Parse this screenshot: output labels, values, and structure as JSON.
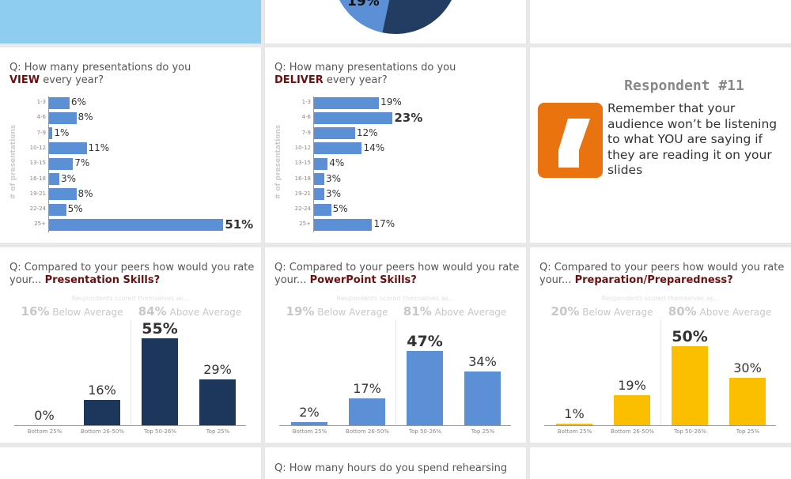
{
  "colors": {
    "top_left_block": "#8ecdf0",
    "pie_light": "#5b8fd6",
    "pie_dark": "#233d62",
    "hbar": "#5b8fd6",
    "presentation": "#1c365c",
    "powerpoint": "#5b8fd6",
    "preparation": "#fbbf00",
    "quote_icon": "#e8730f",
    "highlight": "#6b0f0f"
  },
  "pie": {
    "visible_label": "19%",
    "slices": [
      {
        "value": 19,
        "color": "#5b8fd6"
      },
      {
        "value": 81,
        "color": "#233d62"
      }
    ]
  },
  "view_chart": {
    "q_prefix": "Q: How many presentations do you",
    "q_em": "VIEW",
    "q_suffix": " every year?"
  },
  "deliver_chart": {
    "q_prefix": "Q: How many presentations do you",
    "q_em": "DELIVER",
    "q_suffix": " every year?"
  },
  "quote": {
    "title": "Respondent #11",
    "icon": "quote-mark-icon",
    "text": "Remember that your audience won’t be listening to what YOU are saying if they are reading it on your slides"
  },
  "rating_common": {
    "q_prefix": "Q: Compared to your peers how would you rate your... ",
    "subtitle": "Respondents scored themselves as...",
    "below": "Below Average",
    "above": "Above Average"
  },
  "presentation": {
    "q_em": "Presentation Skills?",
    "below_pct": "16%",
    "above_pct": "84%"
  },
  "powerpoint": {
    "q_em": "PowerPoint Skills?",
    "below_pct": "19%",
    "above_pct": "81%"
  },
  "preparation": {
    "q_em": "Preparation/Preparedness?",
    "below_pct": "20%",
    "above_pct": "80%"
  },
  "rehearse": {
    "q": "Q: How many hours do you spend rehearsing"
  },
  "chart_data": [
    {
      "type": "bar",
      "orientation": "horizontal",
      "ylabel": "# of presentations",
      "categories": [
        "1-3",
        "4-6",
        "7-9",
        "10-12",
        "13-15",
        "16-18",
        "19-21",
        "22-24",
        "25+"
      ],
      "values": [
        6,
        8,
        1,
        11,
        7,
        3,
        8,
        5,
        51
      ],
      "labels": [
        "6%",
        "8%",
        "1%",
        "11%",
        "7%",
        "3%",
        "8%",
        "5%",
        "51%"
      ]
    },
    {
      "type": "bar",
      "orientation": "horizontal",
      "ylabel": "# of presentations",
      "categories": [
        "1-3",
        "4-6",
        "7-9",
        "10-12",
        "13-15",
        "16-18",
        "19-21",
        "22-24",
        "25+"
      ],
      "values": [
        19,
        23,
        12,
        14,
        4,
        3,
        3,
        5,
        17
      ],
      "labels": [
        "19%",
        "23%",
        "12%",
        "14%",
        "4%",
        "3%",
        "3%",
        "5%",
        "17%"
      ]
    },
    {
      "type": "bar",
      "categories": [
        "Bottom 25%",
        "Bottom 26-50%",
        "Top 50-26%",
        "Top 25%"
      ],
      "values": [
        0,
        16,
        55,
        29
      ],
      "labels": [
        "0%",
        "16%",
        "55%",
        "29%"
      ]
    },
    {
      "type": "bar",
      "categories": [
        "Bottom 25%",
        "Bottom 26-50%",
        "Top 50-26%",
        "Top 25%"
      ],
      "values": [
        2,
        17,
        47,
        34
      ],
      "labels": [
        "2%",
        "17%",
        "47%",
        "34%"
      ]
    },
    {
      "type": "bar",
      "categories": [
        "Bottom 25%",
        "Bottom 26-50%",
        "Top 50-26%",
        "Top 25%"
      ],
      "values": [
        1,
        19,
        50,
        30
      ],
      "labels": [
        "1%",
        "19%",
        "50%",
        "30%"
      ]
    }
  ]
}
